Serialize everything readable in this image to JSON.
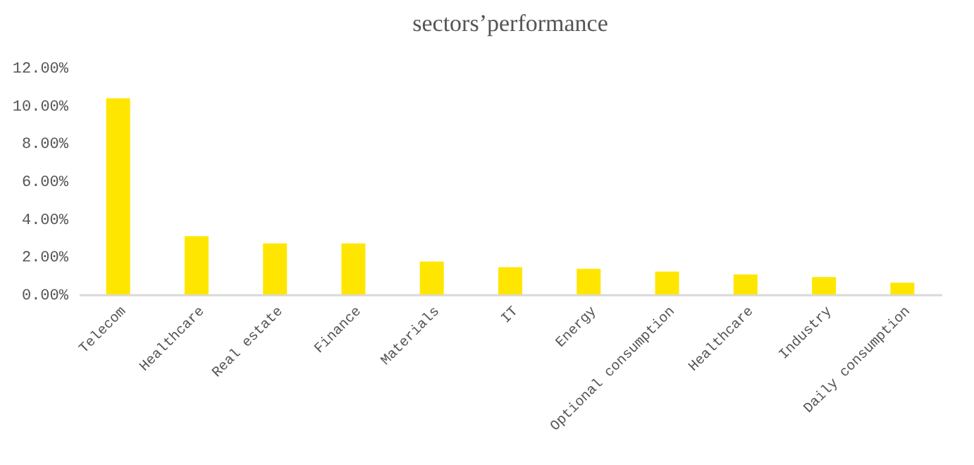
{
  "chart_data": {
    "type": "bar",
    "title": "sectors’performance",
    "categories": [
      "Telecom",
      "Healthcare",
      "Real estate",
      "Finance",
      "Materials",
      "IT",
      "Energy",
      "Optional consumption",
      "Healthcare",
      "Industry",
      "Daily consumption"
    ],
    "values": [
      10.38,
      3.08,
      2.7,
      2.7,
      1.74,
      1.44,
      1.36,
      1.21,
      1.06,
      0.92,
      0.62
    ],
    "color": "#ffe600",
    "ylim": [
      0,
      12
    ],
    "yticks": [
      {
        "value": 0,
        "label": "0.00%"
      },
      {
        "value": 2,
        "label": "2.00%"
      },
      {
        "value": 4,
        "label": "4.00%"
      },
      {
        "value": 6,
        "label": "6.00%"
      },
      {
        "value": 8,
        "label": "8.00%"
      },
      {
        "value": 10,
        "label": "10.00%"
      },
      {
        "value": 12,
        "label": "12.00%"
      }
    ],
    "grid": false
  }
}
